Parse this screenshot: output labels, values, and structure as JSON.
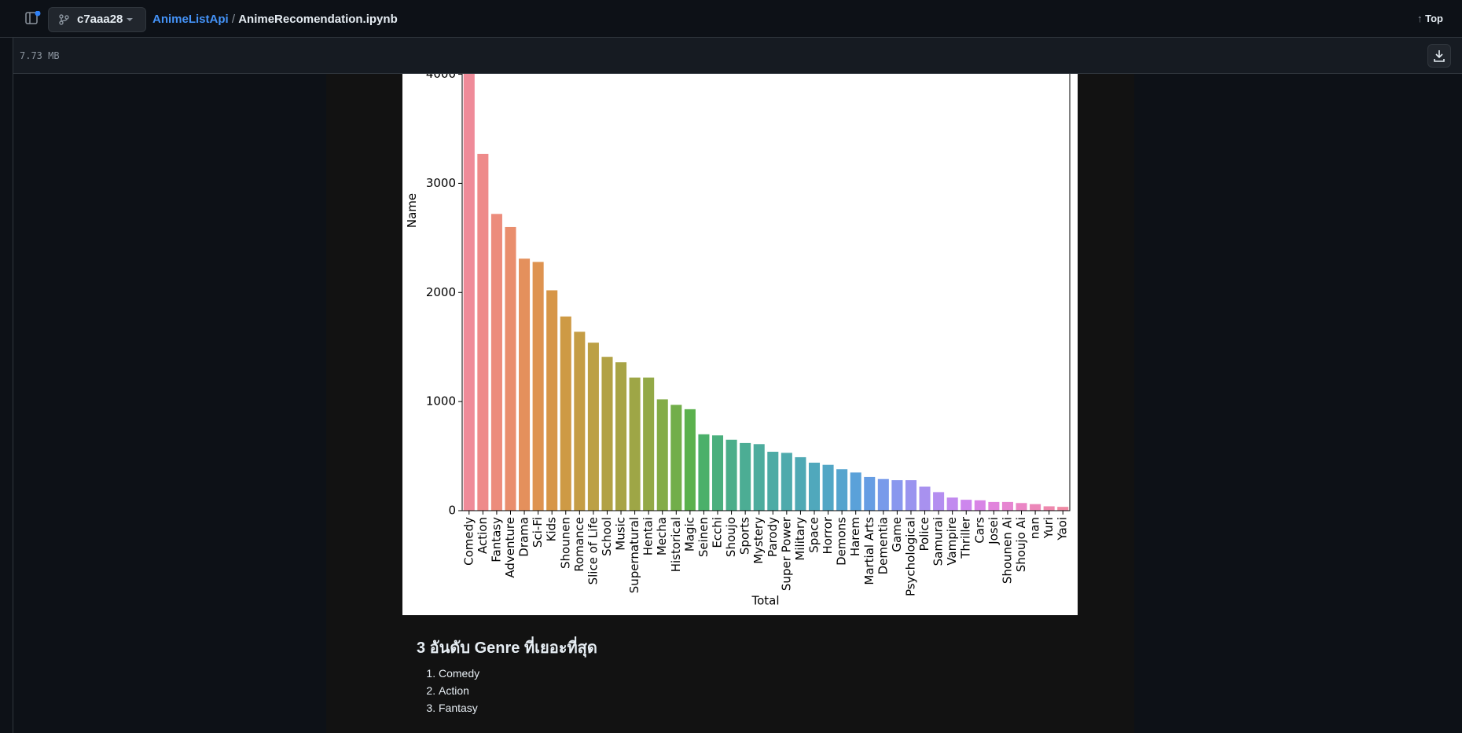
{
  "header": {
    "branch": "c7aaa28",
    "repo": "AnimeListApi",
    "separator": "/",
    "file": "AnimeRecomendation.ipynb",
    "top": "Top"
  },
  "file_size": "7.73 MB",
  "chart_data": {
    "type": "bar",
    "xlabel": "Total",
    "ylabel": "Name",
    "categories": [
      "Comedy",
      "Action",
      "Fantasy",
      "Adventure",
      "Drama",
      "Sci-Fi",
      "Kids",
      "Shounen",
      "Romance",
      "Slice of Life",
      "School",
      "Music",
      "Supernatural",
      "Hentai",
      "Mecha",
      "Historical",
      "Magic",
      "Seinen",
      "Ecchi",
      "Shoujo",
      "Sports",
      "Mystery",
      "Parody",
      "Super Power",
      "Military",
      "Space",
      "Horror",
      "Demons",
      "Harem",
      "Martial Arts",
      "Dementia",
      "Game",
      "Psychological",
      "Police",
      "Samurai",
      "Vampire",
      "Thriller",
      "Cars",
      "Josei",
      "Shounen Ai",
      "Shoujo Ai",
      "nan",
      "Yuri",
      "Yaoi"
    ],
    "values": [
      4250,
      3270,
      2720,
      2600,
      2310,
      2280,
      2020,
      1780,
      1640,
      1540,
      1410,
      1360,
      1220,
      1220,
      1020,
      970,
      930,
      700,
      690,
      650,
      620,
      610,
      540,
      530,
      490,
      440,
      420,
      380,
      350,
      310,
      290,
      280,
      280,
      220,
      170,
      120,
      100,
      95,
      80,
      80,
      70,
      60,
      40,
      35
    ],
    "colors": [
      "#ef8b99",
      "#ee8a8a",
      "#ec8c7c",
      "#e98e6d",
      "#e4905c",
      "#de9350",
      "#d79647",
      "#ce9a45",
      "#c59d45",
      "#bca045",
      "#b2a245",
      "#a8a446",
      "#9ea646",
      "#93a947",
      "#84ac48",
      "#72ae4a",
      "#5bb14d",
      "#4bb06a",
      "#4baf7d",
      "#4cae8a",
      "#4cad94",
      "#4dac9d",
      "#4daba5",
      "#4eaaac",
      "#4fa9b4",
      "#50a8bc",
      "#52a6c5",
      "#55a4ce",
      "#5aa1d9",
      "#669de3",
      "#789aea",
      "#8997ee",
      "#9a94ef",
      "#a891ef",
      "#b48ef0",
      "#c18aef",
      "#cd86ed",
      "#d884e6",
      "#e184dc",
      "#e685d1",
      "#ea86c5",
      "#ec87b9",
      "#ee88ad",
      "#ef89a3"
    ],
    "ylim": [
      0,
      4400
    ],
    "yticks": [
      0,
      1000,
      2000,
      3000,
      4000
    ]
  },
  "section": {
    "heading": "3 อันดับ Genre ที่เยอะที่สุด",
    "items": [
      "Comedy",
      "Action",
      "Fantasy"
    ]
  }
}
